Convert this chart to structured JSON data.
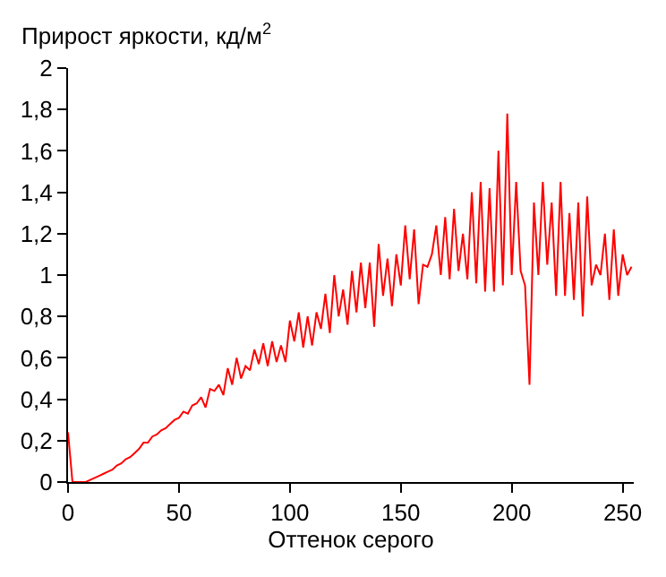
{
  "chart_data": {
    "type": "line",
    "ylabel": "Прирост яркости, кд/м$^{2}$",
    "xlabel": "Оттенок серого",
    "x": [
      0,
      2,
      4,
      6,
      8,
      10,
      12,
      14,
      16,
      18,
      20,
      22,
      24,
      26,
      28,
      30,
      32,
      34,
      36,
      38,
      40,
      42,
      44,
      46,
      48,
      50,
      52,
      54,
      56,
      58,
      60,
      62,
      64,
      66,
      68,
      70,
      72,
      74,
      76,
      78,
      80,
      82,
      84,
      86,
      88,
      90,
      92,
      94,
      96,
      98,
      100,
      102,
      104,
      106,
      108,
      110,
      112,
      114,
      116,
      118,
      120,
      122,
      124,
      126,
      128,
      130,
      132,
      134,
      136,
      138,
      140,
      142,
      144,
      146,
      148,
      150,
      152,
      154,
      156,
      158,
      160,
      162,
      164,
      166,
      168,
      170,
      172,
      174,
      176,
      178,
      180,
      182,
      184,
      186,
      188,
      190,
      192,
      194,
      196,
      198,
      200,
      202,
      204,
      206,
      208,
      210,
      212,
      214,
      216,
      218,
      220,
      222,
      224,
      226,
      228,
      230,
      232,
      234,
      236,
      238,
      240,
      242,
      244,
      246,
      248,
      250,
      252,
      254
    ],
    "series": [
      {
        "color": "#ff0000",
        "values": [
          0.24,
          0,
          0,
          0,
          0,
          0.01,
          0.02,
          0.03,
          0.04,
          0.05,
          0.06,
          0.08,
          0.09,
          0.11,
          0.12,
          0.14,
          0.16,
          0.19,
          0.19,
          0.22,
          0.23,
          0.25,
          0.26,
          0.28,
          0.3,
          0.31,
          0.34,
          0.33,
          0.37,
          0.38,
          0.41,
          0.36,
          0.45,
          0.44,
          0.47,
          0.42,
          0.55,
          0.47,
          0.6,
          0.5,
          0.56,
          0.54,
          0.64,
          0.57,
          0.67,
          0.56,
          0.68,
          0.58,
          0.66,
          0.58,
          0.78,
          0.68,
          0.82,
          0.65,
          0.8,
          0.66,
          0.82,
          0.74,
          0.91,
          0.72,
          1.0,
          0.8,
          0.93,
          0.76,
          1.02,
          0.82,
          1.06,
          0.84,
          1.06,
          0.75,
          1.15,
          0.9,
          1.08,
          0.85,
          1.1,
          0.95,
          1.24,
          0.98,
          1.22,
          0.86,
          1.05,
          1.04,
          1.1,
          1.24,
          1.0,
          1.28,
          0.98,
          1.32,
          1.02,
          1.2,
          0.98,
          1.4,
          0.96,
          1.45,
          0.92,
          1.42,
          0.92,
          1.6,
          0.95,
          1.78,
          1.0,
          1.45,
          1.02,
          0.95,
          0.47,
          1.35,
          1.0,
          1.45,
          1.05,
          1.35,
          0.9,
          1.45,
          0.9,
          1.3,
          0.88,
          1.35,
          0.8,
          1.38,
          0.95,
          1.05,
          1.0,
          1.2,
          0.88,
          1.22,
          0.9,
          1.1,
          1.0,
          1.04
        ]
      }
    ],
    "xlim": [
      0,
      255
    ],
    "ylim": [
      0,
      2
    ],
    "xticks": [
      0,
      50,
      100,
      150,
      200,
      250
    ],
    "yticks": [
      0,
      {
        "value": 0.2,
        "label": "0,2"
      },
      {
        "value": 0.4,
        "label": "0,4"
      },
      {
        "value": 0.6,
        "label": "0,6"
      },
      {
        "value": 0.8,
        "label": "0,8"
      },
      1,
      {
        "value": 1.2,
        "label": "1,2"
      },
      {
        "value": 1.4,
        "label": "1,4"
      },
      {
        "value": 1.6,
        "label": "1,6"
      },
      {
        "value": 1.8,
        "label": "1,8"
      },
      2
    ],
    "line_style": "solid"
  }
}
